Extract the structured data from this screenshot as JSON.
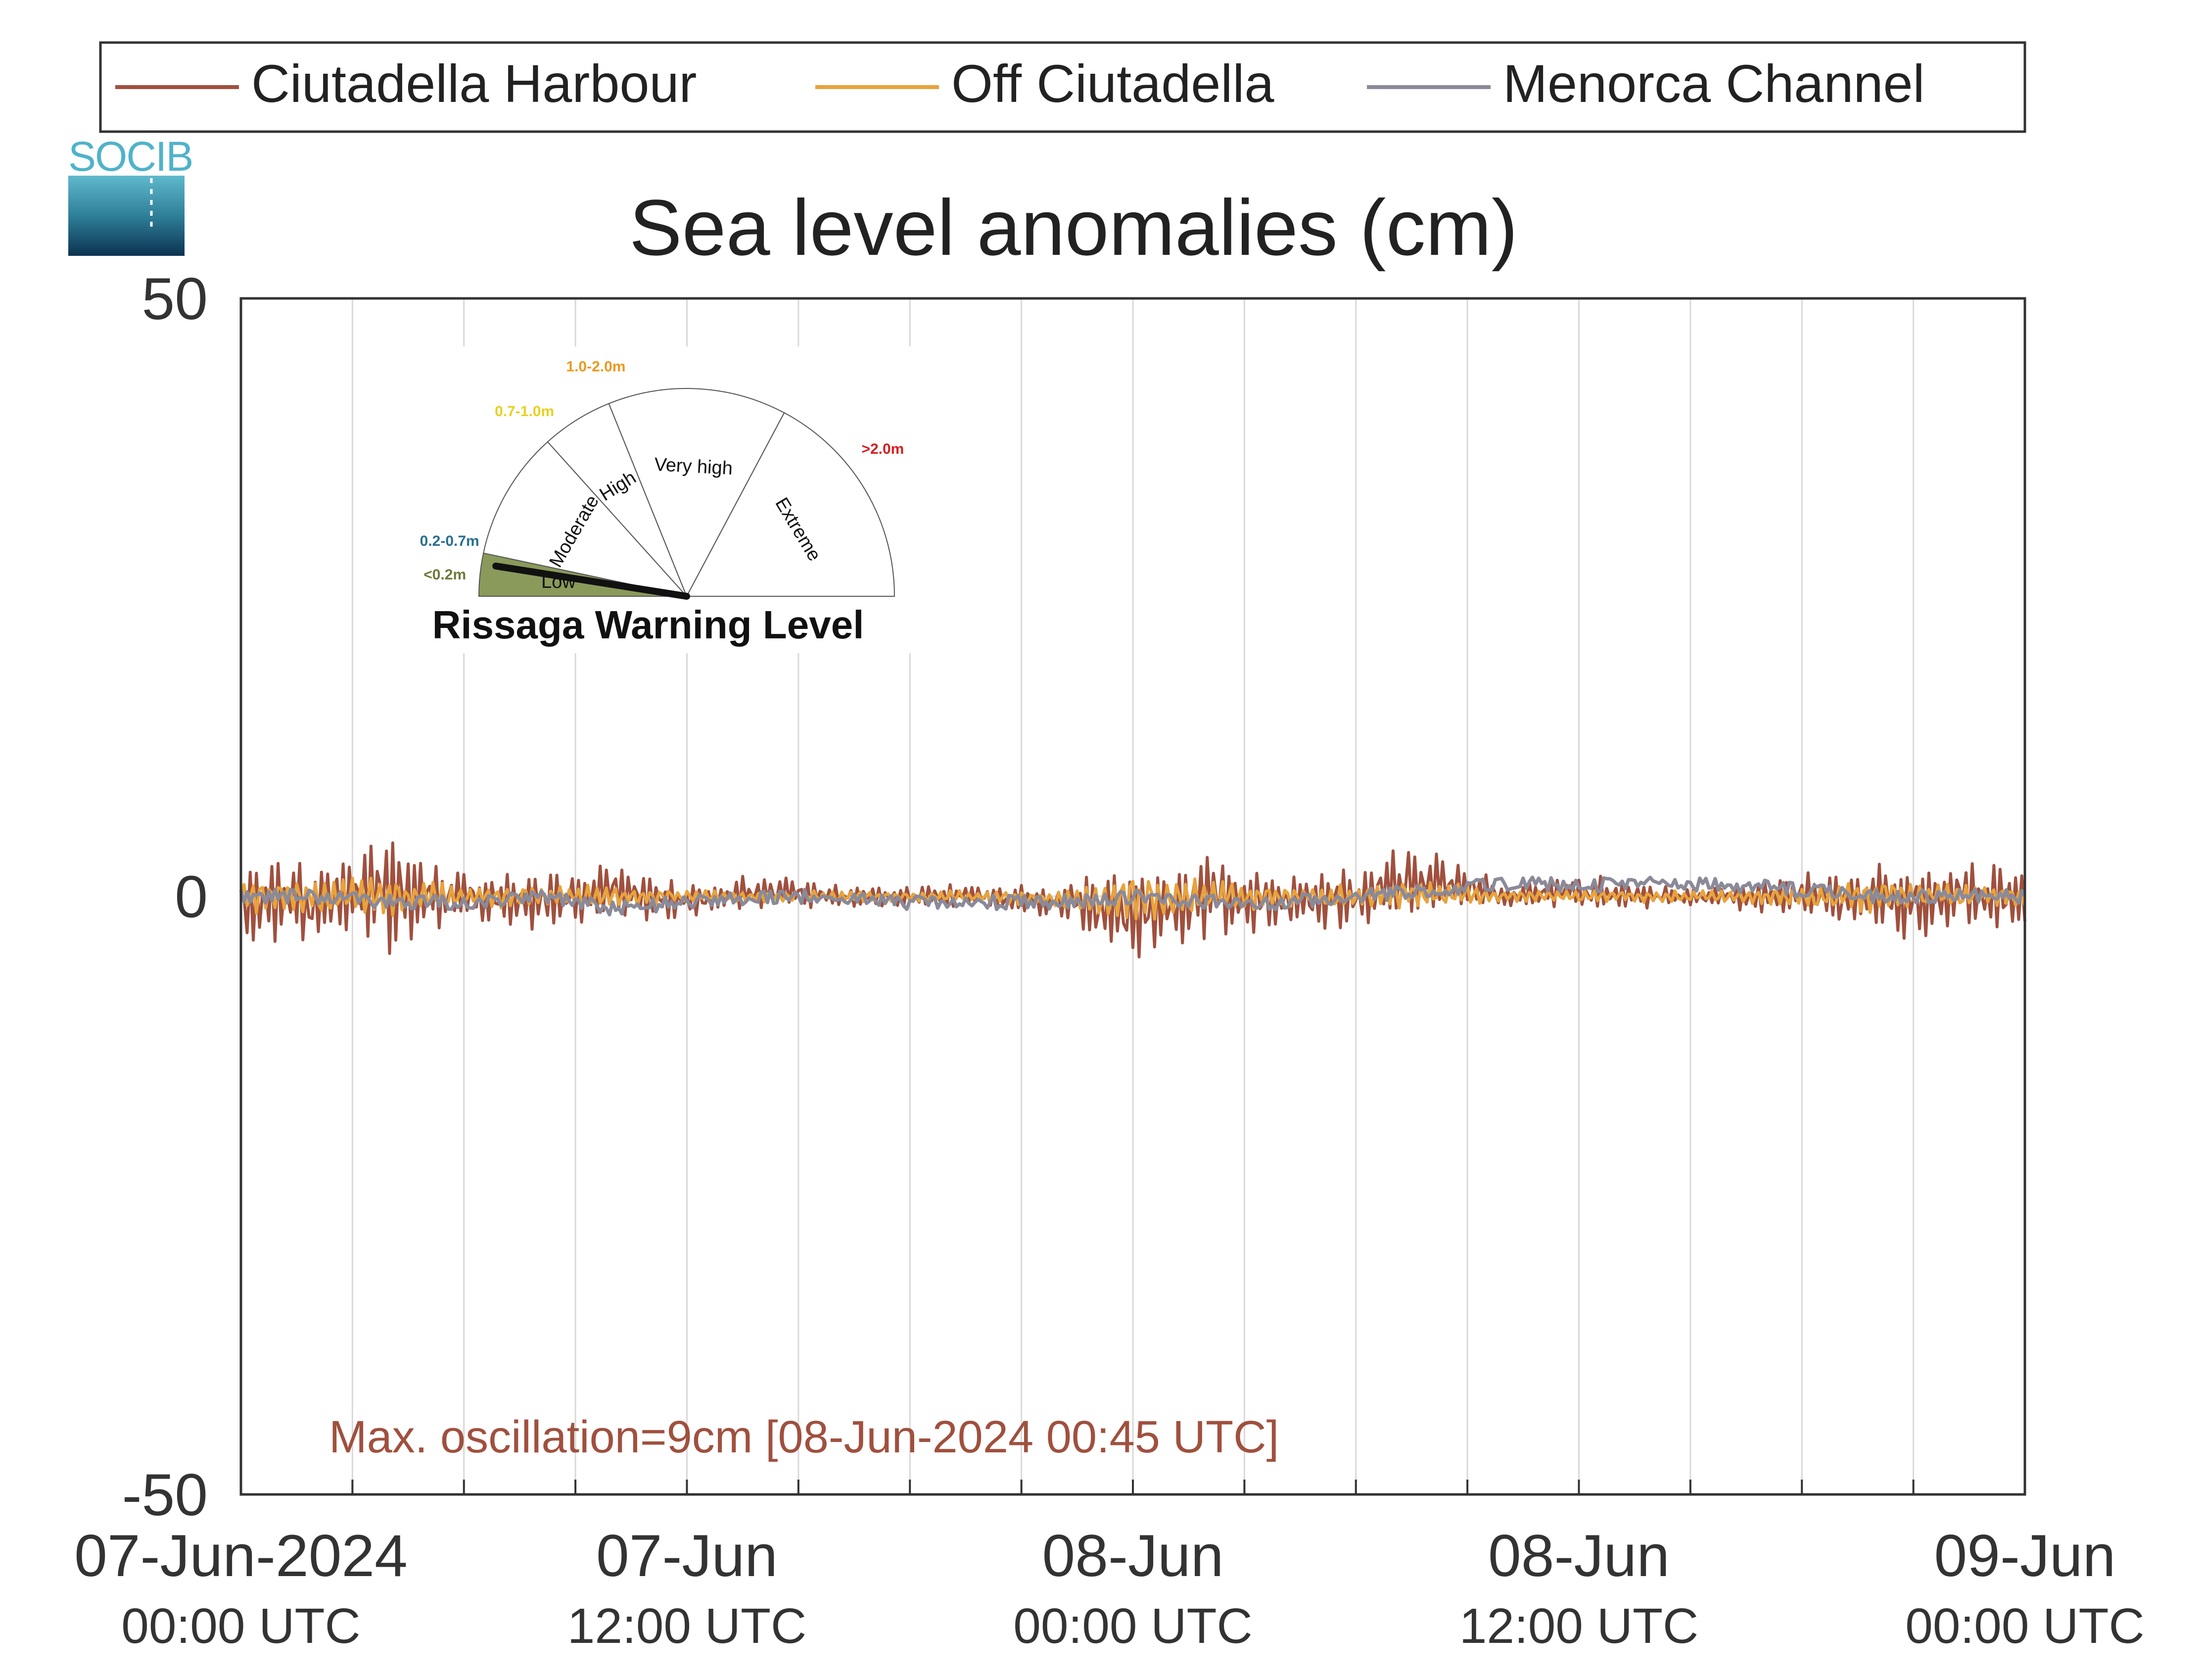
{
  "chart_data": {
    "type": "line",
    "title": "Sea level anomalies (cm)",
    "xlabel": "",
    "ylabel": "",
    "ylim": [
      -50,
      50
    ],
    "y_ticks": [
      50,
      0,
      -50
    ],
    "x_range": [
      "2024-06-07T00:00Z",
      "2024-06-09T00:00Z"
    ],
    "x_ticks": [
      {
        "date": "07-Jun-2024",
        "time": "00:00 UTC"
      },
      {
        "date": "07-Jun",
        "time": "12:00 UTC"
      },
      {
        "date": "08-Jun",
        "time": "00:00 UTC"
      },
      {
        "date": "08-Jun",
        "time": "12:00 UTC"
      },
      {
        "date": "09-Jun",
        "time": "00:00 UTC"
      }
    ],
    "grid": "vertical every 3 hours",
    "legend_position": "top",
    "series": [
      {
        "name": "Ciutadella Harbour",
        "color": "#a0503e",
        "x_hours": [
          0,
          2,
          4,
          6,
          8,
          10,
          12,
          14,
          16,
          18,
          20,
          22,
          24,
          26,
          28,
          30,
          32,
          34,
          36,
          38,
          40,
          42,
          44,
          46,
          48
        ],
        "envelope_upper": [
          3,
          3,
          5,
          2,
          2,
          3,
          1,
          2,
          1,
          1,
          1,
          1,
          3,
          4,
          2,
          3,
          5,
          1,
          2,
          1,
          1,
          2,
          3,
          3,
          3
        ],
        "envelope_lower": [
          -4,
          -4,
          -5,
          -2,
          -3,
          -2,
          -2,
          -1,
          -1,
          -1,
          -1,
          -2,
          -6,
          -4,
          -3,
          -3,
          -2,
          -1,
          -1,
          -1,
          -1,
          -2,
          -4,
          -3,
          -3
        ]
      },
      {
        "name": "Off Ciutadella",
        "color": "#e8a33c",
        "x_hours": [
          0,
          2,
          4,
          6,
          8,
          10,
          12,
          14,
          16,
          18,
          20,
          22,
          24,
          26,
          28,
          30,
          32,
          34,
          36,
          38,
          40,
          42,
          44,
          46,
          48
        ],
        "envelope_upper": [
          1.5,
          1.5,
          2,
          1,
          1,
          1,
          0.5,
          0.5,
          0.5,
          0.5,
          0.5,
          0.5,
          2,
          1.5,
          1,
          1,
          1.5,
          0.5,
          0.5,
          0.5,
          0.5,
          1,
          1.5,
          1,
          1
        ],
        "envelope_lower": [
          -1.5,
          -1.5,
          -2,
          -1,
          -1,
          -1,
          -0.5,
          -0.5,
          -0.5,
          -0.5,
          -0.5,
          -1,
          -2.5,
          -1.5,
          -1,
          -1,
          -1,
          -0.5,
          -0.5,
          -0.5,
          -0.5,
          -1,
          -1.5,
          -1,
          -1
        ]
      },
      {
        "name": "Menorca Channel",
        "color": "#8a8a99",
        "x_hours": [
          0,
          2,
          4,
          6,
          8,
          10,
          12,
          14,
          16,
          18,
          20,
          22,
          24,
          26,
          28,
          30,
          32,
          34,
          36,
          38,
          40,
          42,
          44,
          46,
          48
        ],
        "values": [
          0,
          0,
          -0.5,
          -0.5,
          0,
          -1,
          -0.5,
          0,
          0,
          -0.5,
          -0.5,
          -0.5,
          0,
          -0.5,
          -0.5,
          0,
          0.5,
          1,
          1,
          1,
          1,
          0.5,
          0,
          0,
          0
        ]
      }
    ],
    "annotation": "Max. oscillation=9cm [08-Jun-2024 00:45 UTC]",
    "annotation_color": "#a0503e"
  },
  "logo": {
    "text": "SOCIB"
  },
  "gauge": {
    "title": "Rissaga Warning Level",
    "selected": "Low",
    "needle_fraction": 0.05,
    "segments": [
      {
        "label": "Low",
        "range": "<0.2m",
        "range_color": "#6b7a3a",
        "fill": "#8a9a5b"
      },
      {
        "label": "Moderate",
        "range": "0.2-0.7m",
        "range_color": "#2a6f8f",
        "fill": "#ffffff"
      },
      {
        "label": "High",
        "range": "0.7-1.0m",
        "range_color": "#e8d020",
        "fill": "#ffffff"
      },
      {
        "label": "Very high",
        "range": "1.0-2.0m",
        "range_color": "#e89a20",
        "fill": "#ffffff"
      },
      {
        "label": "Extreme",
        "range": ">2.0m",
        "range_color": "#d42020",
        "fill": "#ffffff"
      }
    ]
  }
}
